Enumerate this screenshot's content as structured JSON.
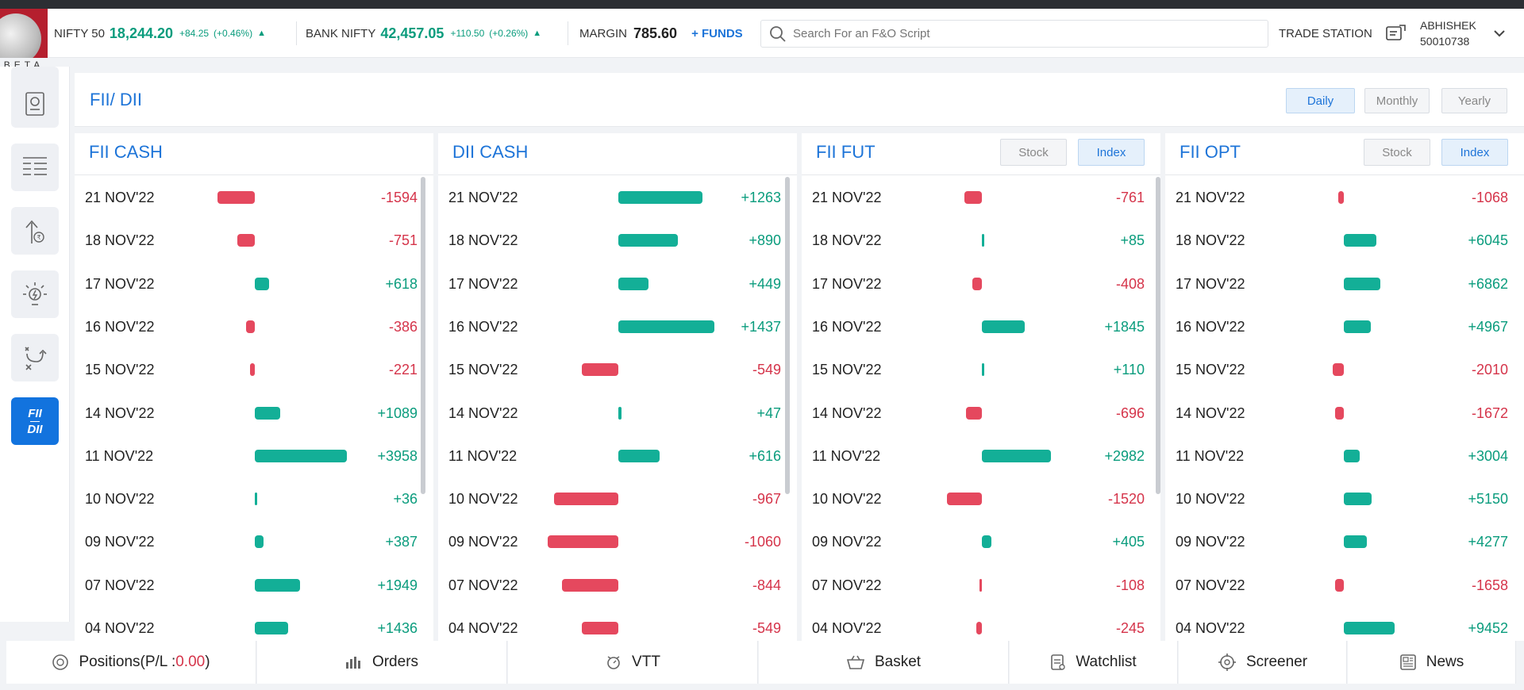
{
  "header": {
    "beta_label": "BETA",
    "nifty": {
      "name": "NIFTY 50",
      "value": "18,244.20",
      "change": "+84.25",
      "pct": "(+0.46%)"
    },
    "banknifty": {
      "name": "BANK NIFTY",
      "value": "42,457.05",
      "change": "+110.50",
      "pct": "(+0.26%)"
    },
    "margin_label": "MARGIN",
    "margin_value": "785.60",
    "funds_label": "+ FUNDS",
    "search_placeholder": "Search For an F&O Script",
    "trade_station": "TRADE STATION",
    "user_name": "ABHISHEK",
    "user_id": "50010738"
  },
  "sidebar": {
    "items": [
      "report-icon",
      "list-icon",
      "upload-rupee-icon",
      "idea-icon",
      "strategy-icon"
    ],
    "active_top": "FII",
    "active_bottom": "DII"
  },
  "page": {
    "title": "FII/ DII",
    "periods": [
      "Daily",
      "Monthly",
      "Yearly"
    ],
    "selected_period": "Daily"
  },
  "panels": [
    {
      "title": "FII CASH",
      "toggles": [],
      "rows": [
        {
          "date": "21 NOV'22",
          "value": -1594,
          "label": "-1594"
        },
        {
          "date": "18 NOV'22",
          "value": -751,
          "label": "-751"
        },
        {
          "date": "17 NOV'22",
          "value": 618,
          "label": "+618"
        },
        {
          "date": "16 NOV'22",
          "value": -386,
          "label": "-386"
        },
        {
          "date": "15 NOV'22",
          "value": -221,
          "label": "-221"
        },
        {
          "date": "14 NOV'22",
          "value": 1089,
          "label": "+1089"
        },
        {
          "date": "11 NOV'22",
          "value": 3958,
          "label": "+3958"
        },
        {
          "date": "10 NOV'22",
          "value": 36,
          "label": "+36"
        },
        {
          "date": "09 NOV'22",
          "value": 387,
          "label": "+387"
        },
        {
          "date": "07 NOV'22",
          "value": 1949,
          "label": "+1949"
        },
        {
          "date": "04 NOV'22",
          "value": 1436,
          "label": "+1436"
        }
      ]
    },
    {
      "title": "DII CASH",
      "toggles": [],
      "rows": [
        {
          "date": "21 NOV'22",
          "value": 1263,
          "label": "+1263"
        },
        {
          "date": "18 NOV'22",
          "value": 890,
          "label": "+890"
        },
        {
          "date": "17 NOV'22",
          "value": 449,
          "label": "+449"
        },
        {
          "date": "16 NOV'22",
          "value": 1437,
          "label": "+1437"
        },
        {
          "date": "15 NOV'22",
          "value": -549,
          "label": "-549"
        },
        {
          "date": "14 NOV'22",
          "value": 47,
          "label": "+47"
        },
        {
          "date": "11 NOV'22",
          "value": 616,
          "label": "+616"
        },
        {
          "date": "10 NOV'22",
          "value": -967,
          "label": "-967"
        },
        {
          "date": "09 NOV'22",
          "value": -1060,
          "label": "-1060"
        },
        {
          "date": "07 NOV'22",
          "value": -844,
          "label": "-844"
        },
        {
          "date": "04 NOV'22",
          "value": -549,
          "label": "-549"
        }
      ]
    },
    {
      "title": "FII FUT",
      "toggles": [
        "Stock",
        "Index"
      ],
      "active_toggle": "Index",
      "rows": [
        {
          "date": "21 NOV'22",
          "value": -761,
          "label": "-761"
        },
        {
          "date": "18 NOV'22",
          "value": 85,
          "label": "+85"
        },
        {
          "date": "17 NOV'22",
          "value": -408,
          "label": "-408"
        },
        {
          "date": "16 NOV'22",
          "value": 1845,
          "label": "+1845"
        },
        {
          "date": "15 NOV'22",
          "value": 110,
          "label": "+110"
        },
        {
          "date": "14 NOV'22",
          "value": -696,
          "label": "-696"
        },
        {
          "date": "11 NOV'22",
          "value": 2982,
          "label": "+2982"
        },
        {
          "date": "10 NOV'22",
          "value": -1520,
          "label": "-1520"
        },
        {
          "date": "09 NOV'22",
          "value": 405,
          "label": "+405"
        },
        {
          "date": "07 NOV'22",
          "value": -108,
          "label": "-108"
        },
        {
          "date": "04 NOV'22",
          "value": -245,
          "label": "-245"
        }
      ]
    },
    {
      "title": "FII OPT",
      "toggles": [
        "Stock",
        "Index"
      ],
      "active_toggle": "Index",
      "rows": [
        {
          "date": "21 NOV'22",
          "value": -1068,
          "label": "-1068"
        },
        {
          "date": "18 NOV'22",
          "value": 6045,
          "label": "+6045"
        },
        {
          "date": "17 NOV'22",
          "value": 6862,
          "label": "+6862"
        },
        {
          "date": "16 NOV'22",
          "value": 4967,
          "label": "+4967"
        },
        {
          "date": "15 NOV'22",
          "value": -2010,
          "label": "-2010"
        },
        {
          "date": "14 NOV'22",
          "value": -1672,
          "label": "-1672"
        },
        {
          "date": "11 NOV'22",
          "value": 3004,
          "label": "+3004"
        },
        {
          "date": "10 NOV'22",
          "value": 5150,
          "label": "+5150"
        },
        {
          "date": "09 NOV'22",
          "value": 4277,
          "label": "+4277"
        },
        {
          "date": "07 NOV'22",
          "value": -1658,
          "label": "-1658"
        },
        {
          "date": "04 NOV'22",
          "value": 9452,
          "label": "+9452"
        }
      ]
    }
  ],
  "bottombar": {
    "positions_label": "Positions(P/L : ",
    "positions_value": "0.00",
    "positions_close": ")",
    "orders": "Orders",
    "vtt": "VTT",
    "basket": "Basket",
    "watchlist": "Watchlist",
    "screener": "Screener",
    "news": "News"
  }
}
